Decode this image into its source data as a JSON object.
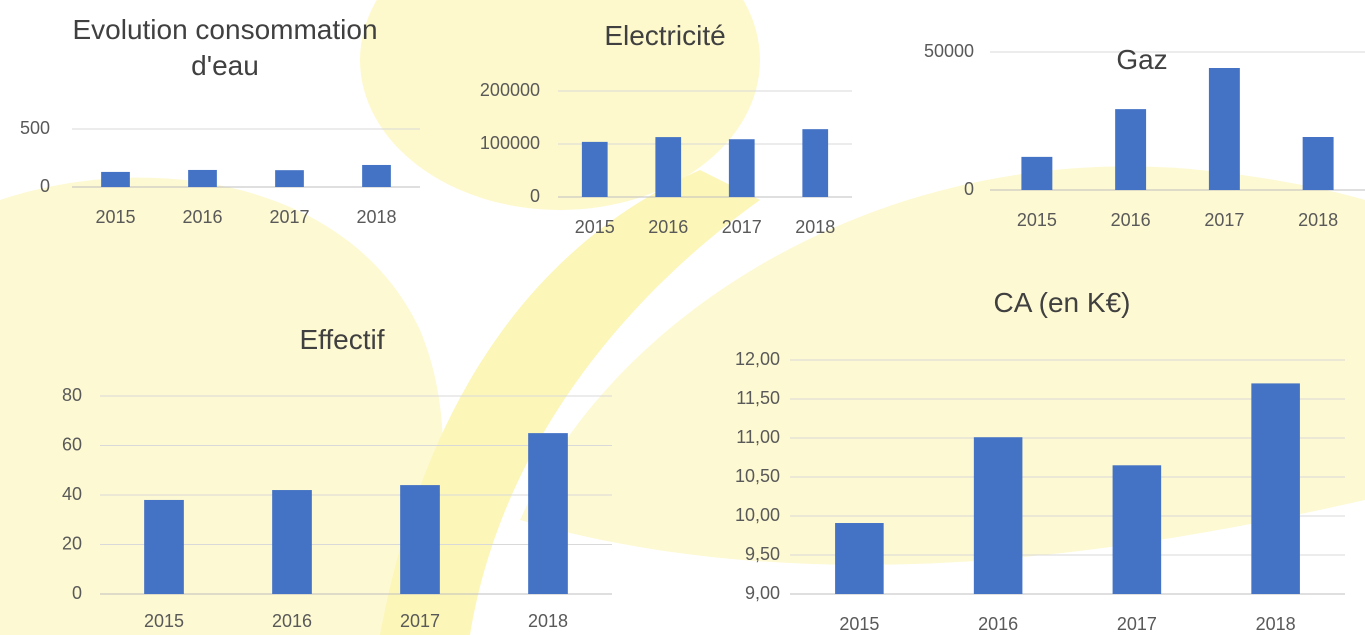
{
  "chart_data": [
    {
      "type": "bar",
      "title": "Evolution consommation d'eau",
      "categories": [
        "2015",
        "2016",
        "2017",
        "2018"
      ],
      "values": [
        130,
        147,
        145,
        190
      ],
      "color": "#4472c4",
      "ylim": [
        0,
        500
      ],
      "yticks": [
        0,
        500
      ],
      "grid": true
    },
    {
      "type": "bar",
      "title": "Electricité",
      "categories": [
        "2015",
        "2016",
        "2017",
        "2018"
      ],
      "values": [
        104000,
        113000,
        109000,
        128000
      ],
      "color": "#4472c4",
      "ylim": [
        0,
        200000
      ],
      "yticks": [
        0,
        100000,
        200000
      ],
      "grid": true
    },
    {
      "type": "bar",
      "title": "Gaz",
      "categories": [
        "2015",
        "2016",
        "2017",
        "2018"
      ],
      "values": [
        12000,
        29300,
        44200,
        19200
      ],
      "color": "#4472c4",
      "ylim": [
        0,
        50000
      ],
      "yticks": [
        0,
        50000
      ],
      "grid": true
    },
    {
      "type": "bar",
      "title": "Effectif",
      "categories": [
        "2015",
        "2016",
        "2017",
        "2018"
      ],
      "values": [
        38,
        42,
        44,
        65
      ],
      "color": "#4472c4",
      "ylim": [
        0,
        80
      ],
      "yticks": [
        0,
        20,
        40,
        60,
        80
      ],
      "grid": true
    },
    {
      "type": "bar",
      "title": "CA (en K€)",
      "categories": [
        "2015",
        "2016",
        "2017",
        "2018"
      ],
      "values": [
        9.91,
        11.01,
        10.65,
        11.7
      ],
      "color": "#4472c4",
      "ylim": [
        9,
        12
      ],
      "yticks": [
        {
          "value": 9,
          "label": "9,00"
        },
        {
          "value": 9.5,
          "label": "9,50"
        },
        {
          "value": 10,
          "label": "10,00"
        },
        {
          "value": 10.5,
          "label": "10,50"
        },
        {
          "value": 11,
          "label": "11,00"
        },
        {
          "value": 11.5,
          "label": "11,50"
        },
        {
          "value": 12,
          "label": "12,00"
        }
      ],
      "grid": true
    }
  ]
}
